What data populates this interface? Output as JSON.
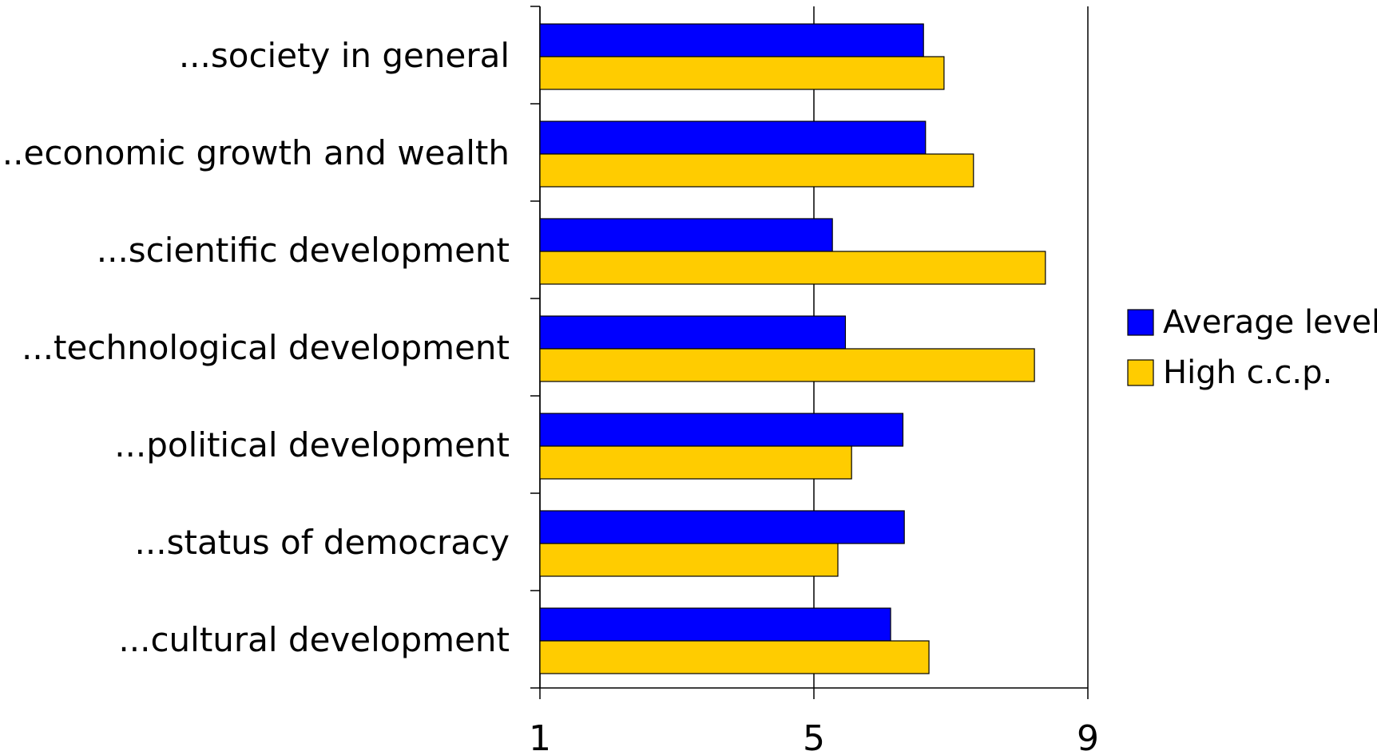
{
  "chart_data": {
    "type": "bar",
    "orientation": "horizontal",
    "categories": [
      "...society in general",
      "...economic growth and wealth",
      "...scientific development",
      "...technological development",
      "...political development",
      "...status of democracy",
      "...cultural development"
    ],
    "series": [
      {
        "name": "Average level",
        "color": "#0000ff",
        "values": [
          6.6,
          6.63,
          5.27,
          5.46,
          6.3,
          6.32,
          6.12
        ]
      },
      {
        "name": "High c.c.p.",
        "color": "#ffcc00",
        "values": [
          6.9,
          7.33,
          8.38,
          8.22,
          5.55,
          5.35,
          6.68
        ]
      }
    ],
    "xlim": [
      1,
      9
    ],
    "xticks": [
      "1",
      "5",
      "9"
    ],
    "grid": "vertical-major",
    "legend_position": "right"
  }
}
